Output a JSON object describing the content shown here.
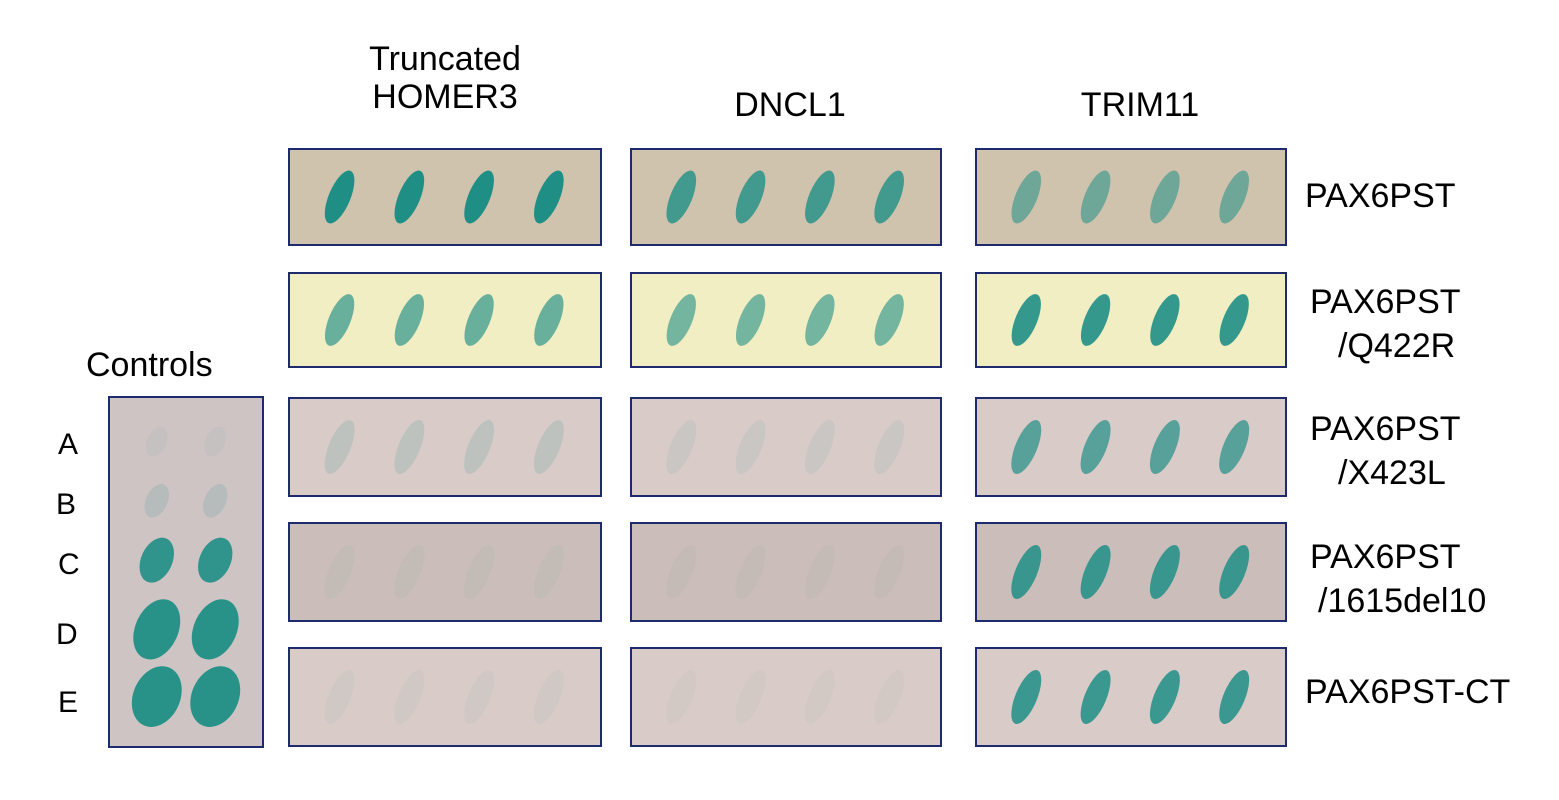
{
  "figure": {
    "columns": [
      {
        "id": "homer3",
        "line1": "Truncated",
        "line2": "HOMER3"
      },
      {
        "id": "dncl1",
        "line1": "DNCL1"
      },
      {
        "id": "trim11",
        "line1": "TRIM11"
      }
    ],
    "rows": [
      {
        "id": "pst",
        "line1": "PAX6PST",
        "line2": ""
      },
      {
        "id": "q422r",
        "line1": "PAX6PST",
        "line2": "/Q422R"
      },
      {
        "id": "x423l",
        "line1": "PAX6PST",
        "line2": "/X423L"
      },
      {
        "id": "del10",
        "line1": "PAX6PST",
        "line2": "/1615del10"
      },
      {
        "id": "ct",
        "line1": "PAX6PST-CT",
        "line2": ""
      }
    ],
    "controls": {
      "title": "Controls",
      "letters": [
        "A",
        "B",
        "C",
        "D",
        "E"
      ]
    },
    "colors": {
      "frame": "#1f2a6e",
      "yeast_blue": "#1f8f86",
      "plate_tan": "#cfc3ae",
      "plate_yellow": "#f2eec4",
      "plate_pink": "#d9cbc8",
      "plate_gray": "#cbbdb9"
    },
    "spot_intensity": {
      "homer3": [
        1.0,
        0.65,
        0.15,
        0.05,
        0.05
      ],
      "dncl1": [
        0.8,
        0.6,
        0.08,
        0.04,
        0.04
      ],
      "trim11": [
        0.55,
        0.9,
        0.7,
        0.85,
        0.85
      ]
    },
    "controls_intensity": [
      0.05,
      0.15,
      0.9,
      0.95,
      0.95
    ]
  }
}
